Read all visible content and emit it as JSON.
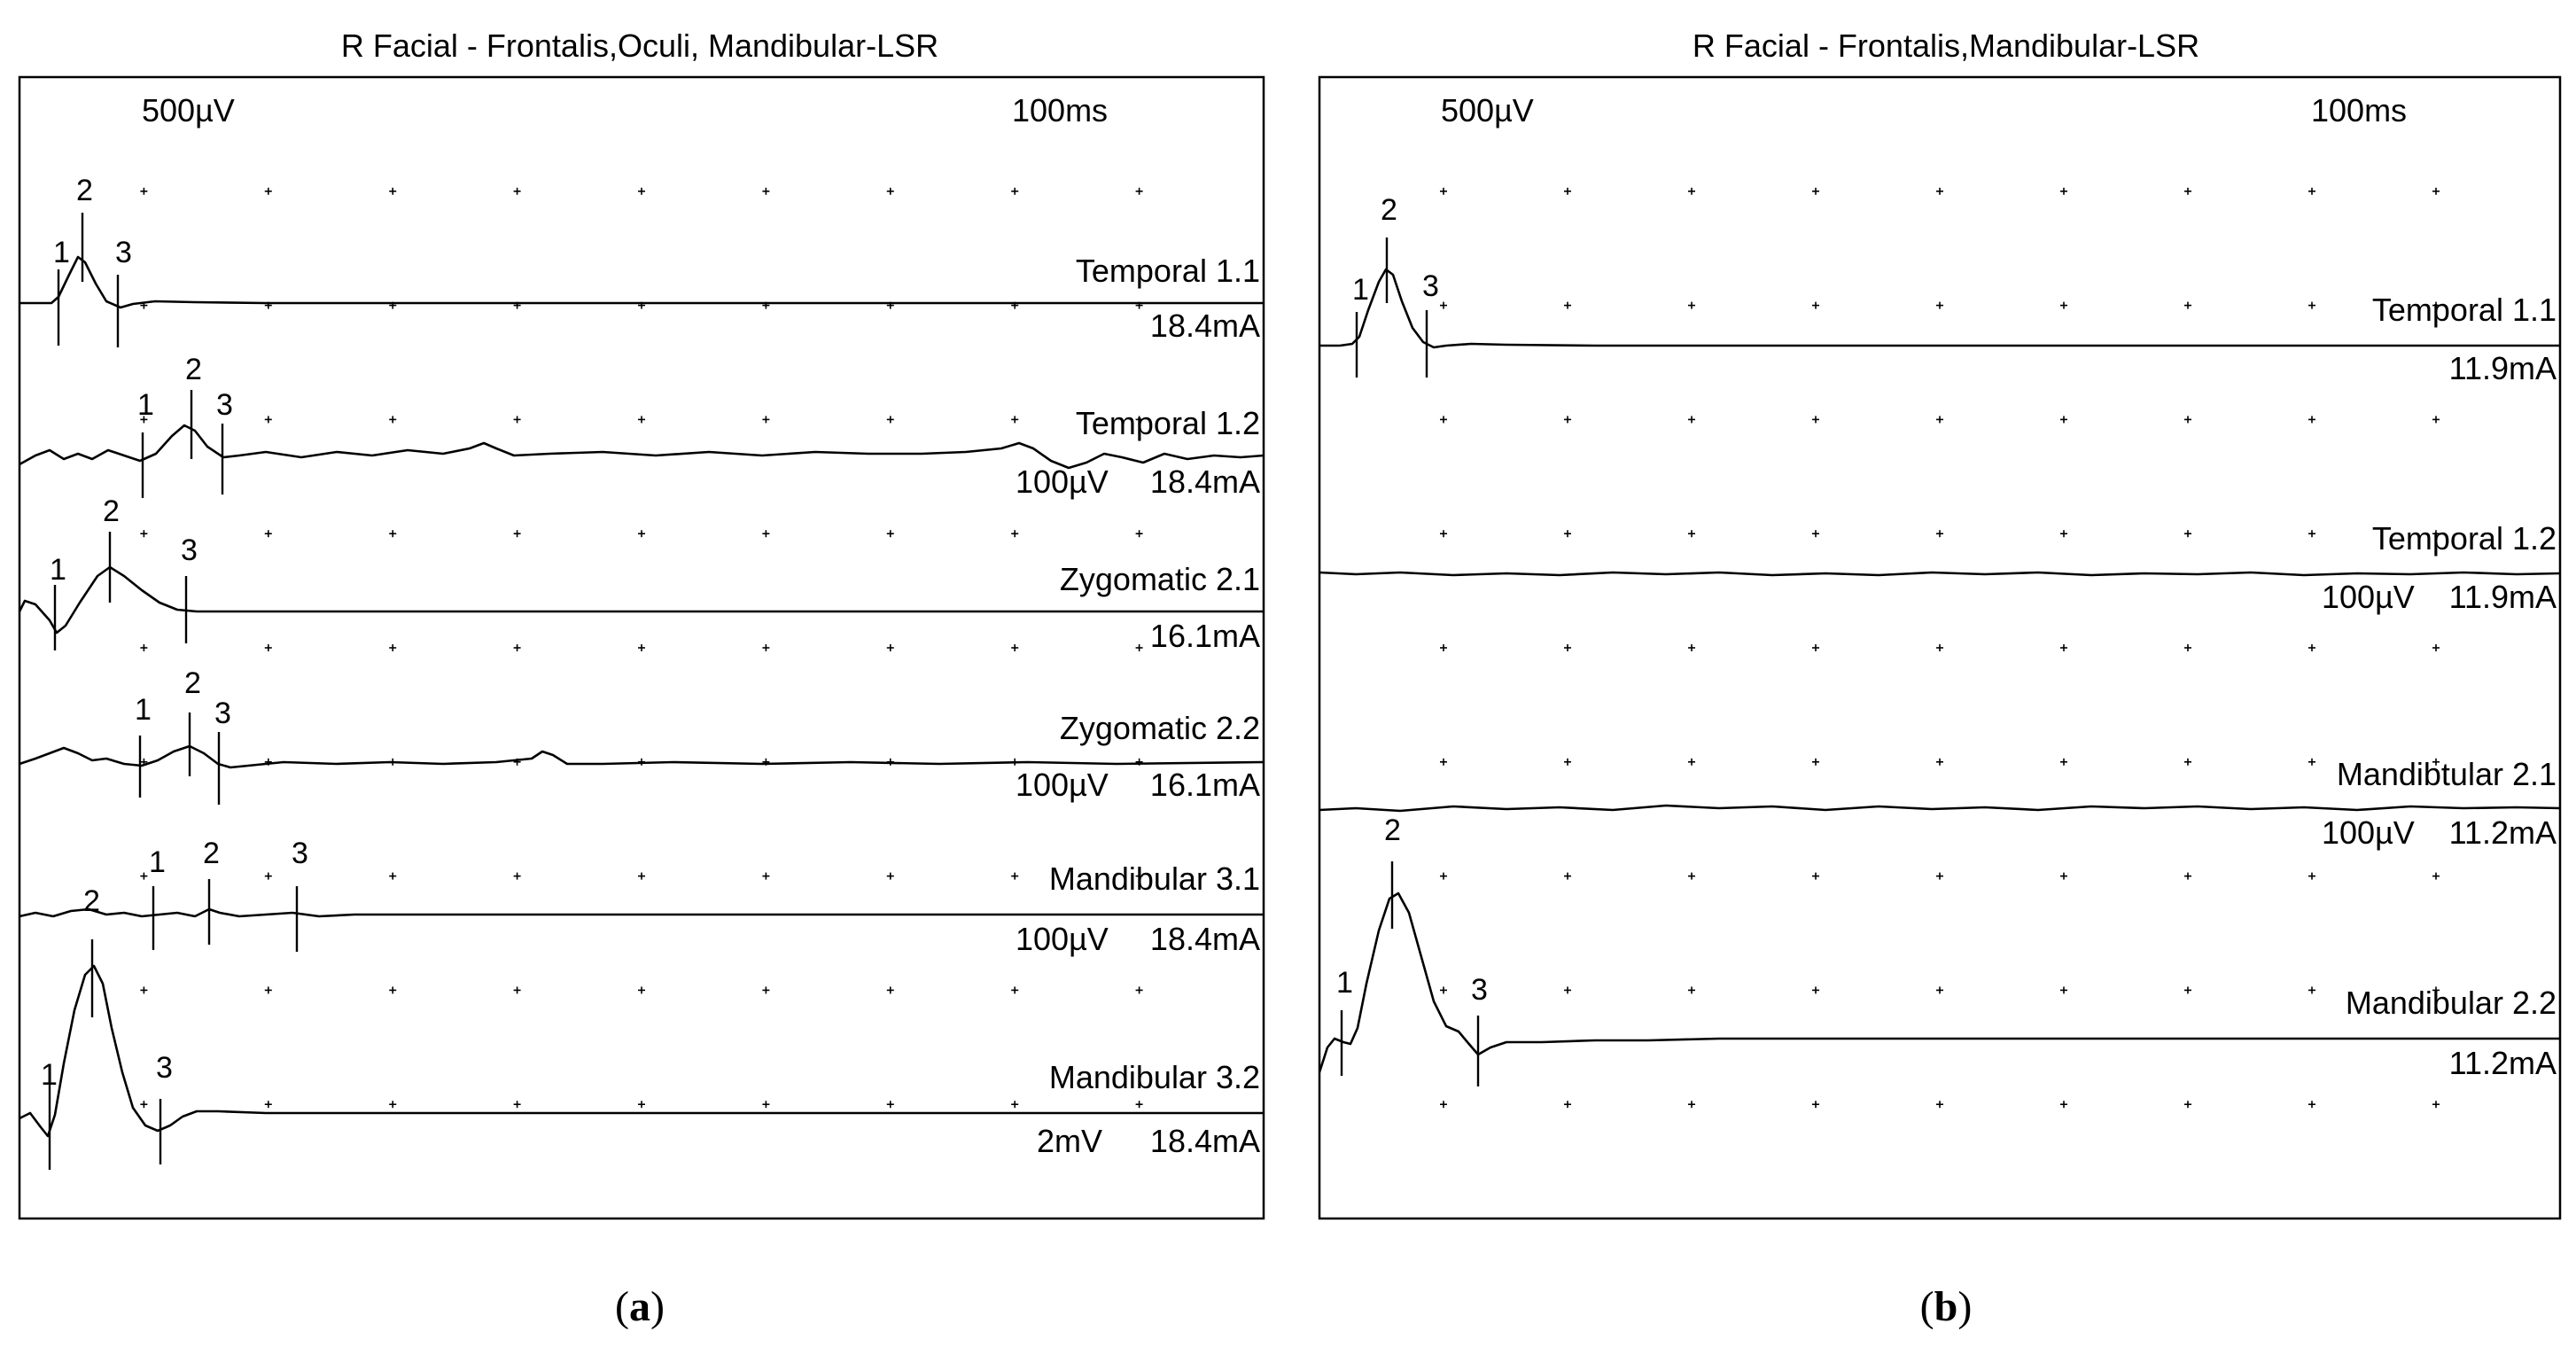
{
  "chart_data": [
    {
      "type": "line",
      "panel_caption": "a",
      "title": "R Facial - Frontalis,Oculi, Mandibular-LSR",
      "sensitivity_label": "500µV",
      "timebase_label": "100ms",
      "traces": [
        {
          "name": "Temporal 1.1",
          "stim": "18.4mA",
          "gain": "",
          "markers": [
            {
              "label": "1"
            },
            {
              "label": "2"
            },
            {
              "label": "3"
            }
          ]
        },
        {
          "name": "Temporal 1.2",
          "stim": "18.4mA",
          "gain": "100µV",
          "markers": [
            {
              "label": "1"
            },
            {
              "label": "2"
            },
            {
              "label": "3"
            }
          ]
        },
        {
          "name": "Zygomatic 2.1",
          "stim": "16.1mA",
          "gain": "",
          "markers": [
            {
              "label": "1"
            },
            {
              "label": "2"
            },
            {
              "label": "3"
            }
          ]
        },
        {
          "name": "Zygomatic 2.2",
          "stim": "16.1mA",
          "gain": "100µV",
          "markers": [
            {
              "label": "1"
            },
            {
              "label": "2"
            },
            {
              "label": "3"
            }
          ]
        },
        {
          "name": "Mandibular 3.1",
          "stim": "18.4mA",
          "gain": "100µV",
          "markers": [
            {
              "label": "2"
            },
            {
              "label": "1"
            },
            {
              "label": "2"
            },
            {
              "label": "3"
            }
          ]
        },
        {
          "name": "Mandibular 3.2",
          "stim": "18.4mA",
          "gain": "2mV",
          "markers": [
            {
              "label": "1"
            },
            {
              "label": "3"
            }
          ]
        }
      ]
    },
    {
      "type": "line",
      "panel_caption": "b",
      "title": "R Facial - Frontalis,Mandibular-LSR",
      "sensitivity_label": "500µV",
      "timebase_label": "100ms",
      "traces": [
        {
          "name": "Temporal 1.1",
          "stim": "11.9mA",
          "gain": "",
          "markers": [
            {
              "label": "1"
            },
            {
              "label": "2"
            },
            {
              "label": "3"
            }
          ]
        },
        {
          "name": "Temporal 1.2",
          "stim": "11.9mA",
          "gain": "100µV",
          "markers": []
        },
        {
          "name": "Mandibtular 2.1",
          "stim": "11.2mA",
          "gain": "100µV",
          "markers": []
        },
        {
          "name": "Mandibular 2.2",
          "stim": "11.2mA",
          "gain": "",
          "markers": [
            {
              "label": "1"
            },
            {
              "label": "2"
            },
            {
              "label": "3"
            }
          ]
        }
      ]
    }
  ]
}
